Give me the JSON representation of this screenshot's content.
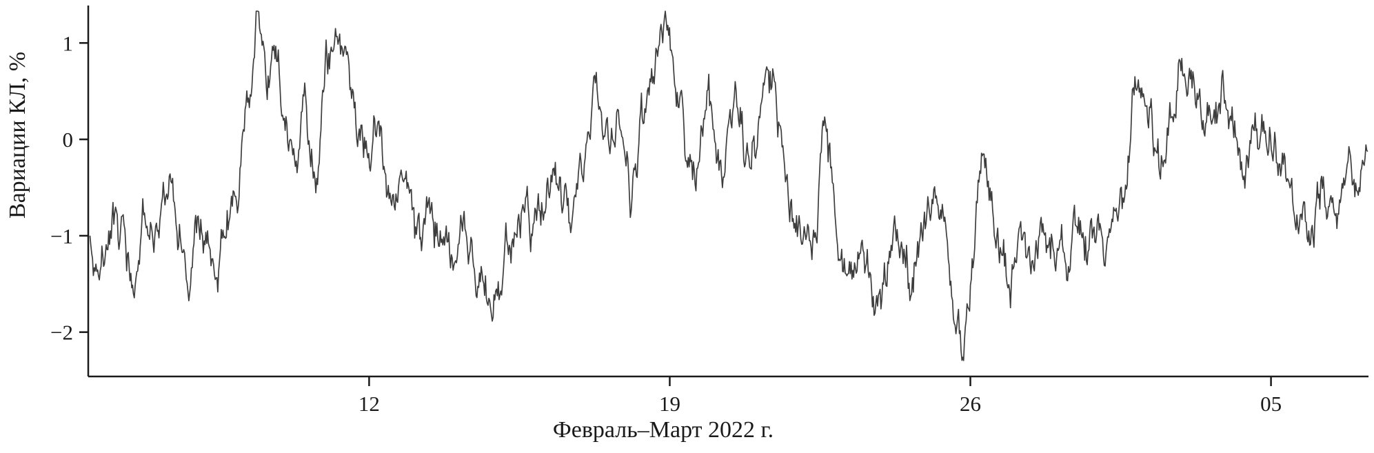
{
  "figure": {
    "background": "#ffffff",
    "line_color": "#3d3d3d",
    "axis_color": "#1a1a1a",
    "text_color": "#1a1a1a"
  },
  "chart_data": {
    "type": "line",
    "title": "",
    "xlabel": "Февраль–Март 2022 г.",
    "ylabel": "Вариации КЛ, %",
    "x_unit": "day of month, February continuing into March 2022 (29 = Mar 1, 33 = Mar 5)",
    "xlim": [
      5.46,
      35.27
    ],
    "ylim": [
      -2.46,
      1.36
    ],
    "grid": false,
    "legend": null,
    "x_ticks": [
      {
        "value": 12,
        "label": "12"
      },
      {
        "value": 19,
        "label": "19"
      },
      {
        "value": 26,
        "label": "26"
      },
      {
        "value": 33,
        "label": "05"
      }
    ],
    "y_ticks": [
      {
        "value": 1,
        "label": "1"
      },
      {
        "value": 0,
        "label": "0"
      },
      {
        "value": -1,
        "label": "−1"
      },
      {
        "value": -2,
        "label": "−2"
      }
    ],
    "series": [
      {
        "name": "Вариации КЛ",
        "noise_amplitude": 0.17,
        "samples": 1500,
        "anchors": [
          [
            5.5,
            -0.9
          ],
          [
            5.7,
            -1.45
          ],
          [
            5.9,
            -1.15
          ],
          [
            6.1,
            -0.8
          ],
          [
            6.3,
            -1.2
          ],
          [
            6.5,
            -1.5
          ],
          [
            6.7,
            -0.95
          ],
          [
            6.9,
            -0.8
          ],
          [
            7.1,
            -1.15
          ],
          [
            7.3,
            -0.3
          ],
          [
            7.5,
            -0.9
          ],
          [
            7.8,
            -1.5
          ],
          [
            8.0,
            -0.85
          ],
          [
            8.2,
            -1.0
          ],
          [
            8.5,
            -1.35
          ],
          [
            8.7,
            -0.8
          ],
          [
            9.0,
            -0.4
          ],
          [
            9.2,
            0.35
          ],
          [
            9.4,
            1.25
          ],
          [
            9.6,
            0.6
          ],
          [
            9.8,
            1.0
          ],
          [
            10.0,
            0.3
          ],
          [
            10.2,
            -0.15
          ],
          [
            10.5,
            0.5
          ],
          [
            10.8,
            -0.35
          ],
          [
            11.0,
            0.9
          ],
          [
            11.2,
            0.95
          ],
          [
            11.5,
            0.4
          ],
          [
            11.7,
            0.1
          ],
          [
            12.0,
            -0.1
          ],
          [
            12.2,
            0.15
          ],
          [
            12.5,
            -0.55
          ],
          [
            12.8,
            -0.2
          ],
          [
            13.1,
            -1.25
          ],
          [
            13.4,
            -0.8
          ],
          [
            13.7,
            -1.1
          ],
          [
            14.0,
            -1.3
          ],
          [
            14.3,
            -0.95
          ],
          [
            14.6,
            -1.45
          ],
          [
            14.9,
            -1.6
          ],
          [
            15.2,
            -1.1
          ],
          [
            15.5,
            -0.8
          ],
          [
            15.8,
            -0.95
          ],
          [
            16.1,
            -0.55
          ],
          [
            16.4,
            -0.3
          ],
          [
            16.7,
            -0.85
          ],
          [
            17.0,
            -0.45
          ],
          [
            17.3,
            0.65
          ],
          [
            17.6,
            -0.1
          ],
          [
            17.9,
            0.25
          ],
          [
            18.1,
            -0.6
          ],
          [
            18.3,
            0.1
          ],
          [
            18.6,
            0.5
          ],
          [
            19.0,
            1.2
          ],
          [
            19.2,
            0.4
          ],
          [
            19.4,
            -0.35
          ],
          [
            19.7,
            -0.15
          ],
          [
            19.9,
            0.45
          ],
          [
            20.2,
            -0.5
          ],
          [
            20.5,
            0.3
          ],
          [
            20.8,
            -0.3
          ],
          [
            21.0,
            0.1
          ],
          [
            21.3,
            0.9
          ],
          [
            21.5,
            0.2
          ],
          [
            21.8,
            -0.6
          ],
          [
            22.1,
            -0.95
          ],
          [
            22.4,
            -1.3
          ],
          [
            22.6,
            0.25
          ],
          [
            22.9,
            -1.0
          ],
          [
            23.2,
            -1.4
          ],
          [
            23.5,
            -1.2
          ],
          [
            23.8,
            -1.9
          ],
          [
            24.0,
            -1.35
          ],
          [
            24.3,
            -0.85
          ],
          [
            24.6,
            -1.5
          ],
          [
            24.9,
            -1.1
          ],
          [
            25.2,
            -0.35
          ],
          [
            25.5,
            -1.3
          ],
          [
            25.8,
            -2.3
          ],
          [
            26.0,
            -1.6
          ],
          [
            26.3,
            -0.25
          ],
          [
            26.6,
            -0.8
          ],
          [
            26.9,
            -1.5
          ],
          [
            27.2,
            -1.0
          ],
          [
            27.5,
            -1.35
          ],
          [
            27.8,
            -1.05
          ],
          [
            28.1,
            -1.2
          ],
          [
            28.4,
            -0.85
          ],
          [
            28.7,
            -1.1
          ],
          [
            29.0,
            -0.9
          ],
          [
            29.3,
            -1.05
          ],
          [
            29.6,
            -0.5
          ],
          [
            29.9,
            0.6
          ],
          [
            30.2,
            0.1
          ],
          [
            30.4,
            -0.3
          ],
          [
            30.7,
            0.35
          ],
          [
            31.0,
            0.85
          ],
          [
            31.3,
            0.45
          ],
          [
            31.6,
            0.15
          ],
          [
            31.9,
            0.45
          ],
          [
            32.2,
            0.05
          ],
          [
            32.5,
            -0.2
          ],
          [
            32.8,
            0.2
          ],
          [
            33.0,
            0.0
          ],
          [
            33.3,
            -0.35
          ],
          [
            33.6,
            -0.6
          ],
          [
            33.9,
            -1.0
          ],
          [
            34.2,
            -0.45
          ],
          [
            34.5,
            -0.8
          ],
          [
            34.8,
            -0.6
          ],
          [
            35.0,
            -0.45
          ],
          [
            35.25,
            -0.15
          ]
        ]
      }
    ]
  }
}
